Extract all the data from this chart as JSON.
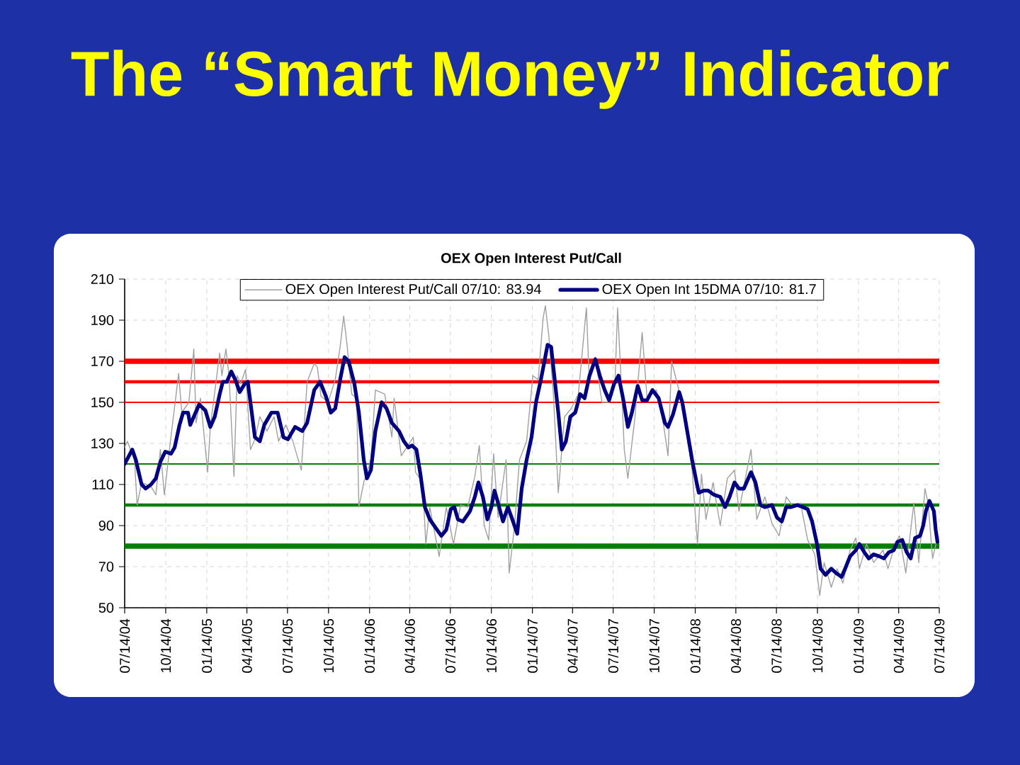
{
  "chart_data": {
    "type": "line",
    "title": "The “Smart Money” Indicator",
    "subtitle": "OEX Open Interest Put/Call",
    "xlim": [
      "2004-07-14",
      "2009-07-14"
    ],
    "ylim": [
      50,
      210
    ],
    "xticks": [
      {
        "value": "2004-07-14",
        "label": "07/14/04"
      },
      {
        "value": "2004-10-14",
        "label": "10/14/04"
      },
      {
        "value": "2005-01-14",
        "label": "01/14/05"
      },
      {
        "value": "2005-04-14",
        "label": "04/14/05"
      },
      {
        "value": "2005-07-14",
        "label": "07/14/05"
      },
      {
        "value": "2005-10-14",
        "label": "10/14/05"
      },
      {
        "value": "2006-01-14",
        "label": "01/14/06"
      },
      {
        "value": "2006-04-14",
        "label": "04/14/06"
      },
      {
        "value": "2006-07-14",
        "label": "07/14/06"
      },
      {
        "value": "2006-10-14",
        "label": "10/14/06"
      },
      {
        "value": "2007-01-14",
        "label": "01/14/07"
      },
      {
        "value": "2007-04-14",
        "label": "04/14/07"
      },
      {
        "value": "2007-07-14",
        "label": "07/14/07"
      },
      {
        "value": "2007-10-14",
        "label": "10/14/07"
      },
      {
        "value": "2008-01-14",
        "label": "01/14/08"
      },
      {
        "value": "2008-04-14",
        "label": "04/14/08"
      },
      {
        "value": "2008-07-14",
        "label": "07/14/08"
      },
      {
        "value": "2008-10-14",
        "label": "10/14/08"
      },
      {
        "value": "2009-01-14",
        "label": "01/14/09"
      },
      {
        "value": "2009-04-14",
        "label": "04/14/09"
      },
      {
        "value": "2009-07-14",
        "label": "07/14/09"
      }
    ],
    "yticks": [
      50,
      70,
      90,
      110,
      130,
      150,
      170,
      190,
      210
    ],
    "grid": true,
    "legend": "top",
    "ref_lines": [
      {
        "axis": "y",
        "value": 170,
        "color": "#ff0000"
      },
      {
        "axis": "y",
        "value": 160,
        "color": "#ff0000"
      },
      {
        "axis": "y",
        "value": 150,
        "color": "#ff0000"
      },
      {
        "axis": "y",
        "value": 120,
        "color": "#008000"
      },
      {
        "axis": "y",
        "value": 100,
        "color": "#008000"
      },
      {
        "axis": "y",
        "value": 80,
        "color": "#008000"
      }
    ],
    "series": [
      {
        "name": "OEX Open Interest Put/Call 07/10: 83.94",
        "color": "#a0a0a0",
        "x": [
          "2004-07-14",
          "2004-07-20",
          "2004-08-05",
          "2004-08-11",
          "2004-08-21",
          "2004-09-11",
          "2004-09-22",
          "2004-10-02",
          "2004-10-11",
          "2004-10-24",
          "2004-11-12",
          "2004-11-19",
          "2004-12-05",
          "2004-12-16",
          "2004-12-21",
          "2004-12-31",
          "2005-01-16",
          "2005-01-22",
          "2005-02-12",
          "2005-02-17",
          "2005-02-26",
          "2005-03-05",
          "2005-03-16",
          "2005-03-23",
          "2005-03-31",
          "2005-04-11",
          "2005-04-22",
          "2005-05-02",
          "2005-05-13",
          "2005-05-29",
          "2005-06-14",
          "2005-06-24",
          "2005-07-10",
          "2005-07-26",
          "2005-08-14",
          "2005-08-27",
          "2005-09-12",
          "2005-09-19",
          "2005-09-27",
          "2005-10-13",
          "2005-10-29",
          "2005-11-09",
          "2005-11-17",
          "2005-11-25",
          "2005-12-05",
          "2005-12-16",
          "2005-12-21",
          "2006-01-01",
          "2006-01-17",
          "2006-01-27",
          "2006-02-17",
          "2006-03-05",
          "2006-03-10",
          "2006-03-26",
          "2006-04-22",
          "2006-04-27",
          "2006-05-13",
          "2006-05-20",
          "2006-05-29",
          "2006-06-19",
          "2006-07-05",
          "2006-07-21",
          "2006-08-06",
          "2006-08-22",
          "2006-09-07",
          "2006-09-17",
          "2006-09-28",
          "2006-10-08",
          "2006-10-19",
          "2006-10-29",
          "2006-11-16",
          "2006-11-23",
          "2006-12-05",
          "2006-12-16",
          "2007-01-01",
          "2007-01-15",
          "2007-01-27",
          "2007-02-07",
          "2007-02-12",
          "2007-02-20",
          "2007-03-02",
          "2007-03-13",
          "2007-03-27",
          "2007-04-11",
          "2007-04-27",
          "2007-05-15",
          "2007-05-21",
          "2007-06-04",
          "2007-06-19",
          "2007-07-05",
          "2007-07-18",
          "2007-07-24",
          "2007-08-01",
          "2007-08-08",
          "2007-08-16",
          "2007-09-01",
          "2007-09-17",
          "2007-09-28",
          "2007-10-19",
          "2007-11-04",
          "2007-11-14",
          "2007-11-22",
          "2007-12-06",
          "2007-12-22",
          "2008-01-07",
          "2008-01-19",
          "2008-01-28",
          "2008-02-07",
          "2008-02-23",
          "2008-03-10",
          "2008-03-26",
          "2008-04-11",
          "2008-04-21",
          "2008-05-18",
          "2008-05-31",
          "2008-06-18",
          "2008-07-04",
          "2008-07-20",
          "2008-08-05",
          "2008-08-21",
          "2008-09-06",
          "2008-09-22",
          "2008-10-08",
          "2008-10-19",
          "2008-10-29",
          "2008-11-14",
          "2008-11-27",
          "2008-12-10",
          "2008-12-26",
          "2009-01-08",
          "2009-01-16",
          "2009-02-01",
          "2009-02-17",
          "2009-03-10",
          "2009-03-21",
          "2009-04-06",
          "2009-04-16",
          "2009-04-30",
          "2009-05-18",
          "2009-05-29",
          "2009-06-12",
          "2009-06-19",
          "2009-06-29",
          "2009-07-10"
        ],
        "values": [
          128,
          131,
          122,
          100,
          111,
          109,
          105,
          127,
          105,
          130,
          164,
          145,
          150,
          176,
          140,
          152,
          116,
          138,
          174,
          163,
          176,
          163,
          114,
          163,
          159,
          166,
          127,
          132,
          143,
          136,
          143,
          131,
          139,
          131,
          117,
          160,
          169,
          167,
          153,
          150,
          161,
          177,
          192,
          177,
          154,
          152,
          99,
          111,
          122,
          156,
          154,
          133,
          152,
          124,
          133,
          116,
          111,
          81,
          99,
          75,
          99,
          81,
          100,
          99,
          114,
          129,
          90,
          83,
          125,
          94,
          122,
          67,
          90,
          122,
          131,
          163,
          161,
          191,
          197,
          182,
          154,
          106,
          143,
          147,
          154,
          196,
          163,
          172,
          150,
          150,
          159,
          196,
          160,
          127,
          113,
          143,
          184,
          152,
          156,
          139,
          124,
          170,
          158,
          143,
          117,
          81,
          115,
          93,
          111,
          90,
          113,
          117,
          97,
          127,
          93,
          104,
          91,
          85,
          104,
          99,
          101,
          83,
          76,
          56,
          72,
          60,
          69,
          62,
          78,
          84,
          69,
          81,
          72,
          78,
          69,
          81,
          85,
          67,
          101,
          72,
          108,
          101,
          74,
          84
        ]
      },
      {
        "name": "OEX Open Int 15DMA 07/10: 81.7",
        "color": "#000080",
        "x": [
          "2004-07-14",
          "2004-07-31",
          "2004-08-08",
          "2004-08-21",
          "2004-08-30",
          "2004-09-11",
          "2004-09-22",
          "2004-10-02",
          "2004-10-13",
          "2004-10-26",
          "2004-11-03",
          "2004-11-14",
          "2004-11-22",
          "2004-12-03",
          "2004-12-08",
          "2004-12-16",
          "2004-12-28",
          "2005-01-11",
          "2005-01-22",
          "2005-02-01",
          "2005-02-12",
          "2005-02-19",
          "2005-02-28",
          "2005-03-10",
          "2005-03-19",
          "2005-03-29",
          "2005-04-09",
          "2005-04-16",
          "2005-04-22",
          "2005-05-02",
          "2005-05-13",
          "2005-05-23",
          "2005-06-08",
          "2005-06-22",
          "2005-07-05",
          "2005-07-15",
          "2005-07-31",
          "2005-08-16",
          "2005-08-27",
          "2005-09-12",
          "2005-09-25",
          "2005-10-08",
          "2005-10-19",
          "2005-10-29",
          "2005-11-09",
          "2005-11-19",
          "2005-11-28",
          "2005-12-11",
          "2005-12-21",
          "2006-01-01",
          "2006-01-08",
          "2006-01-17",
          "2006-01-27",
          "2006-02-10",
          "2006-02-21",
          "2006-03-05",
          "2006-03-21",
          "2006-04-01",
          "2006-04-11",
          "2006-04-19",
          "2006-04-29",
          "2006-05-08",
          "2006-05-18",
          "2006-05-29",
          "2006-06-14",
          "2006-06-24",
          "2006-07-05",
          "2006-07-15",
          "2006-07-23",
          "2006-07-31",
          "2006-08-11",
          "2006-08-27",
          "2006-09-07",
          "2006-09-15",
          "2006-09-25",
          "2006-10-05",
          "2006-10-14",
          "2006-10-21",
          "2006-10-29",
          "2006-11-09",
          "2006-11-20",
          "2006-11-30",
          "2006-12-11",
          "2006-12-21",
          "2007-01-01",
          "2007-01-12",
          "2007-01-22",
          "2007-02-02",
          "2007-02-10",
          "2007-02-17",
          "2007-02-25",
          "2007-03-05",
          "2007-03-13",
          "2007-03-21",
          "2007-03-30",
          "2007-04-09",
          "2007-04-20",
          "2007-05-01",
          "2007-05-11",
          "2007-05-22",
          "2007-06-04",
          "2007-06-14",
          "2007-06-25",
          "2007-07-05",
          "2007-07-16",
          "2007-07-26",
          "2007-08-06",
          "2007-08-16",
          "2007-08-25",
          "2007-09-07",
          "2007-09-17",
          "2007-09-28",
          "2007-10-10",
          "2007-10-24",
          "2007-11-07",
          "2007-11-14",
          "2007-11-25",
          "2007-12-09",
          "2007-12-16",
          "2007-12-27",
          "2008-01-07",
          "2008-01-17",
          "2008-01-22",
          "2008-02-02",
          "2008-02-12",
          "2008-02-25",
          "2008-03-10",
          "2008-03-21",
          "2008-03-31",
          "2008-04-11",
          "2008-04-21",
          "2008-05-02",
          "2008-05-18",
          "2008-05-28",
          "2008-06-08",
          "2008-06-18",
          "2008-07-04",
          "2008-07-15",
          "2008-07-26",
          "2008-08-05",
          "2008-08-16",
          "2008-08-30",
          "2008-09-11",
          "2008-09-22",
          "2008-10-02",
          "2008-10-13",
          "2008-10-21",
          "2008-11-01",
          "2008-11-14",
          "2008-11-24",
          "2008-12-07",
          "2008-12-15",
          "2008-12-26",
          "2009-01-08",
          "2009-01-16",
          "2009-01-27",
          "2009-02-06",
          "2009-02-17",
          "2009-03-02",
          "2009-03-12",
          "2009-03-23",
          "2009-04-03",
          "2009-04-11",
          "2009-04-22",
          "2009-05-02",
          "2009-05-11",
          "2009-05-21",
          "2009-06-01",
          "2009-06-08",
          "2009-06-14",
          "2009-06-22",
          "2009-07-02",
          "2009-07-06",
          "2009-07-10"
        ],
        "values": [
          120,
          127,
          122,
          110,
          108,
          110,
          113,
          121,
          126,
          125,
          128,
          139,
          145,
          145,
          139,
          143,
          149,
          146,
          138,
          143,
          154,
          160,
          160,
          165,
          161,
          155,
          159,
          160,
          150,
          133,
          131,
          139,
          145,
          145,
          133,
          132,
          138,
          136,
          140,
          156,
          160,
          153,
          145,
          147,
          161,
          172,
          170,
          159,
          145,
          122,
          113,
          117,
          136,
          150,
          147,
          140,
          136,
          131,
          128,
          129,
          127,
          115,
          99,
          93,
          88,
          85,
          88,
          98,
          99,
          93,
          92,
          97,
          104,
          111,
          104,
          93,
          99,
          107,
          101,
          92,
          99,
          93,
          86,
          108,
          122,
          133,
          150,
          161,
          170,
          178,
          177,
          161,
          145,
          127,
          131,
          143,
          145,
          154,
          152,
          163,
          171,
          163,
          156,
          151,
          159,
          163,
          151,
          138,
          145,
          158,
          151,
          151,
          156,
          152,
          140,
          138,
          144,
          155,
          150,
          136,
          122,
          111,
          106,
          107,
          107,
          105,
          104,
          99,
          104,
          111,
          108,
          108,
          116,
          111,
          100,
          99,
          100,
          94,
          92,
          99,
          99,
          100,
          99,
          98,
          92,
          81,
          69,
          66,
          69,
          67,
          65,
          69,
          75,
          78,
          81,
          77,
          74,
          76,
          75,
          74,
          77,
          78,
          82,
          83,
          77,
          74,
          84,
          85,
          90,
          97,
          102,
          97,
          88,
          82
        ]
      }
    ]
  }
}
